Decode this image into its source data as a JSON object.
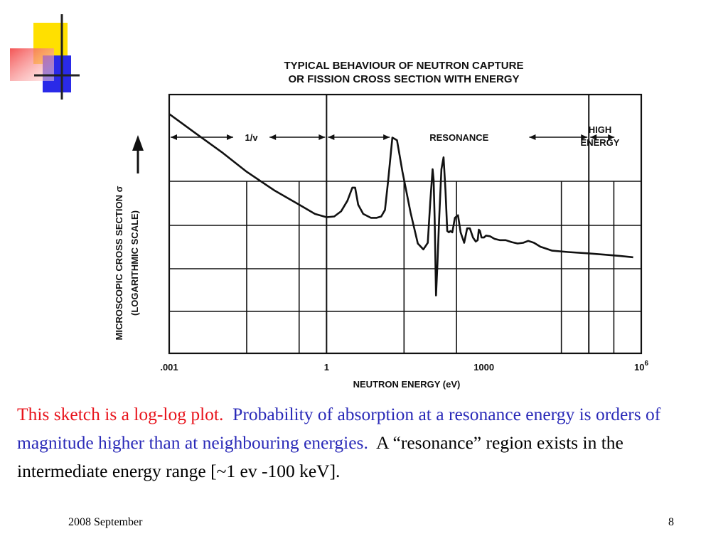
{
  "slide": {
    "caption": {
      "red": "This sketch is a log-log plot.",
      "blue": "Probability of absorption at a resonance energy is orders of magnitude higher than at neighbouring energies.",
      "black": "A “resonance” region exists in the intermediate energy range [~1 ev -100 keV]."
    },
    "footer_date": "2008 September",
    "page_number": "8",
    "colors": {
      "red_text": "#e8141c",
      "blue_text": "#2a2ab8",
      "deco_yellow": "#ffe000",
      "deco_red": "#f24242",
      "deco_blue": "#2a2ae8"
    }
  },
  "chart_data": {
    "type": "line",
    "title_line1": "TYPICAL BEHAVIOUR OF NEUTRON CAPTURE",
    "title_line2": "OR FISSION CROSS SECTION WITH ENERGY",
    "xlabel": "NEUTRON ENERGY (eV)",
    "ylabel_line1": "MICROSCOPIC CROSS SECTION σ",
    "ylabel_line2": "(LOGARITHMIC SCALE)",
    "x_scale": "log",
    "y_scale": "log",
    "xlim": [
      0.001,
      1000000
    ],
    "x_ticks": [
      {
        "value": 0.001,
        "label": ".001"
      },
      {
        "value": 1,
        "label": "1"
      },
      {
        "value": 1000,
        "label": "1000"
      },
      {
        "value": 1000000,
        "label": "10",
        "sup": "6"
      }
    ],
    "grid": true,
    "regions": [
      {
        "label": "1/v",
        "from": 0.001,
        "to": 1
      },
      {
        "label": "RESONANCE",
        "from": 1,
        "to": 100000
      },
      {
        "label_line1": "HIGH",
        "label_line2": "ENERGY",
        "from": 100000,
        "to": 1000000
      }
    ],
    "series": [
      {
        "x": [
          0.001,
          0.003,
          0.01,
          0.03,
          0.1,
          0.3,
          0.6,
          1.0,
          1.4,
          1.9,
          2.5,
          3.1,
          3.5,
          4.0,
          5.0,
          7.0,
          9.0,
          11,
          13,
          15,
          18,
          22,
          28,
          40,
          55,
          70,
          85,
          95,
          105,
          110,
          115,
          122,
          130,
          140,
          155,
          170,
          185,
          200,
          215,
          230,
          250,
          280,
          320,
          360,
          420,
          480,
          540,
          620,
          700,
          760,
          800,
          840,
          900,
          1000,
          1100,
          1300,
          1600,
          2000,
          2600,
          3400,
          4400,
          5600,
          7000,
          9000,
          12000,
          20000,
          40000,
          100000,
          200000,
          400000,
          700000
        ],
        "y": [
          1.0,
          0.86,
          0.71,
          0.56,
          0.42,
          0.31,
          0.24,
          0.215,
          0.22,
          0.26,
          0.34,
          0.44,
          0.44,
          0.31,
          0.24,
          0.21,
          0.21,
          0.22,
          0.27,
          0.5,
          0.82,
          0.8,
          0.56,
          0.25,
          0.015,
          -0.03,
          0.02,
          0.33,
          0.58,
          0.5,
          0.2,
          -0.38,
          -0.14,
          0.2,
          0.58,
          0.67,
          0.42,
          0.11,
          0.1,
          0.11,
          0.1,
          0.21,
          0.23,
          0.1,
          0.02,
          0.13,
          0.13,
          0.06,
          0.03,
          0.04,
          0.12,
          0.11,
          0.06,
          0.06,
          0.075,
          0.07,
          0.05,
          0.04,
          0.04,
          0.025,
          0.015,
          0.02,
          0.035,
          0.02,
          -0.01,
          -0.04,
          -0.05,
          -0.06,
          -0.07,
          -0.08,
          -0.09
        ]
      }
    ]
  }
}
